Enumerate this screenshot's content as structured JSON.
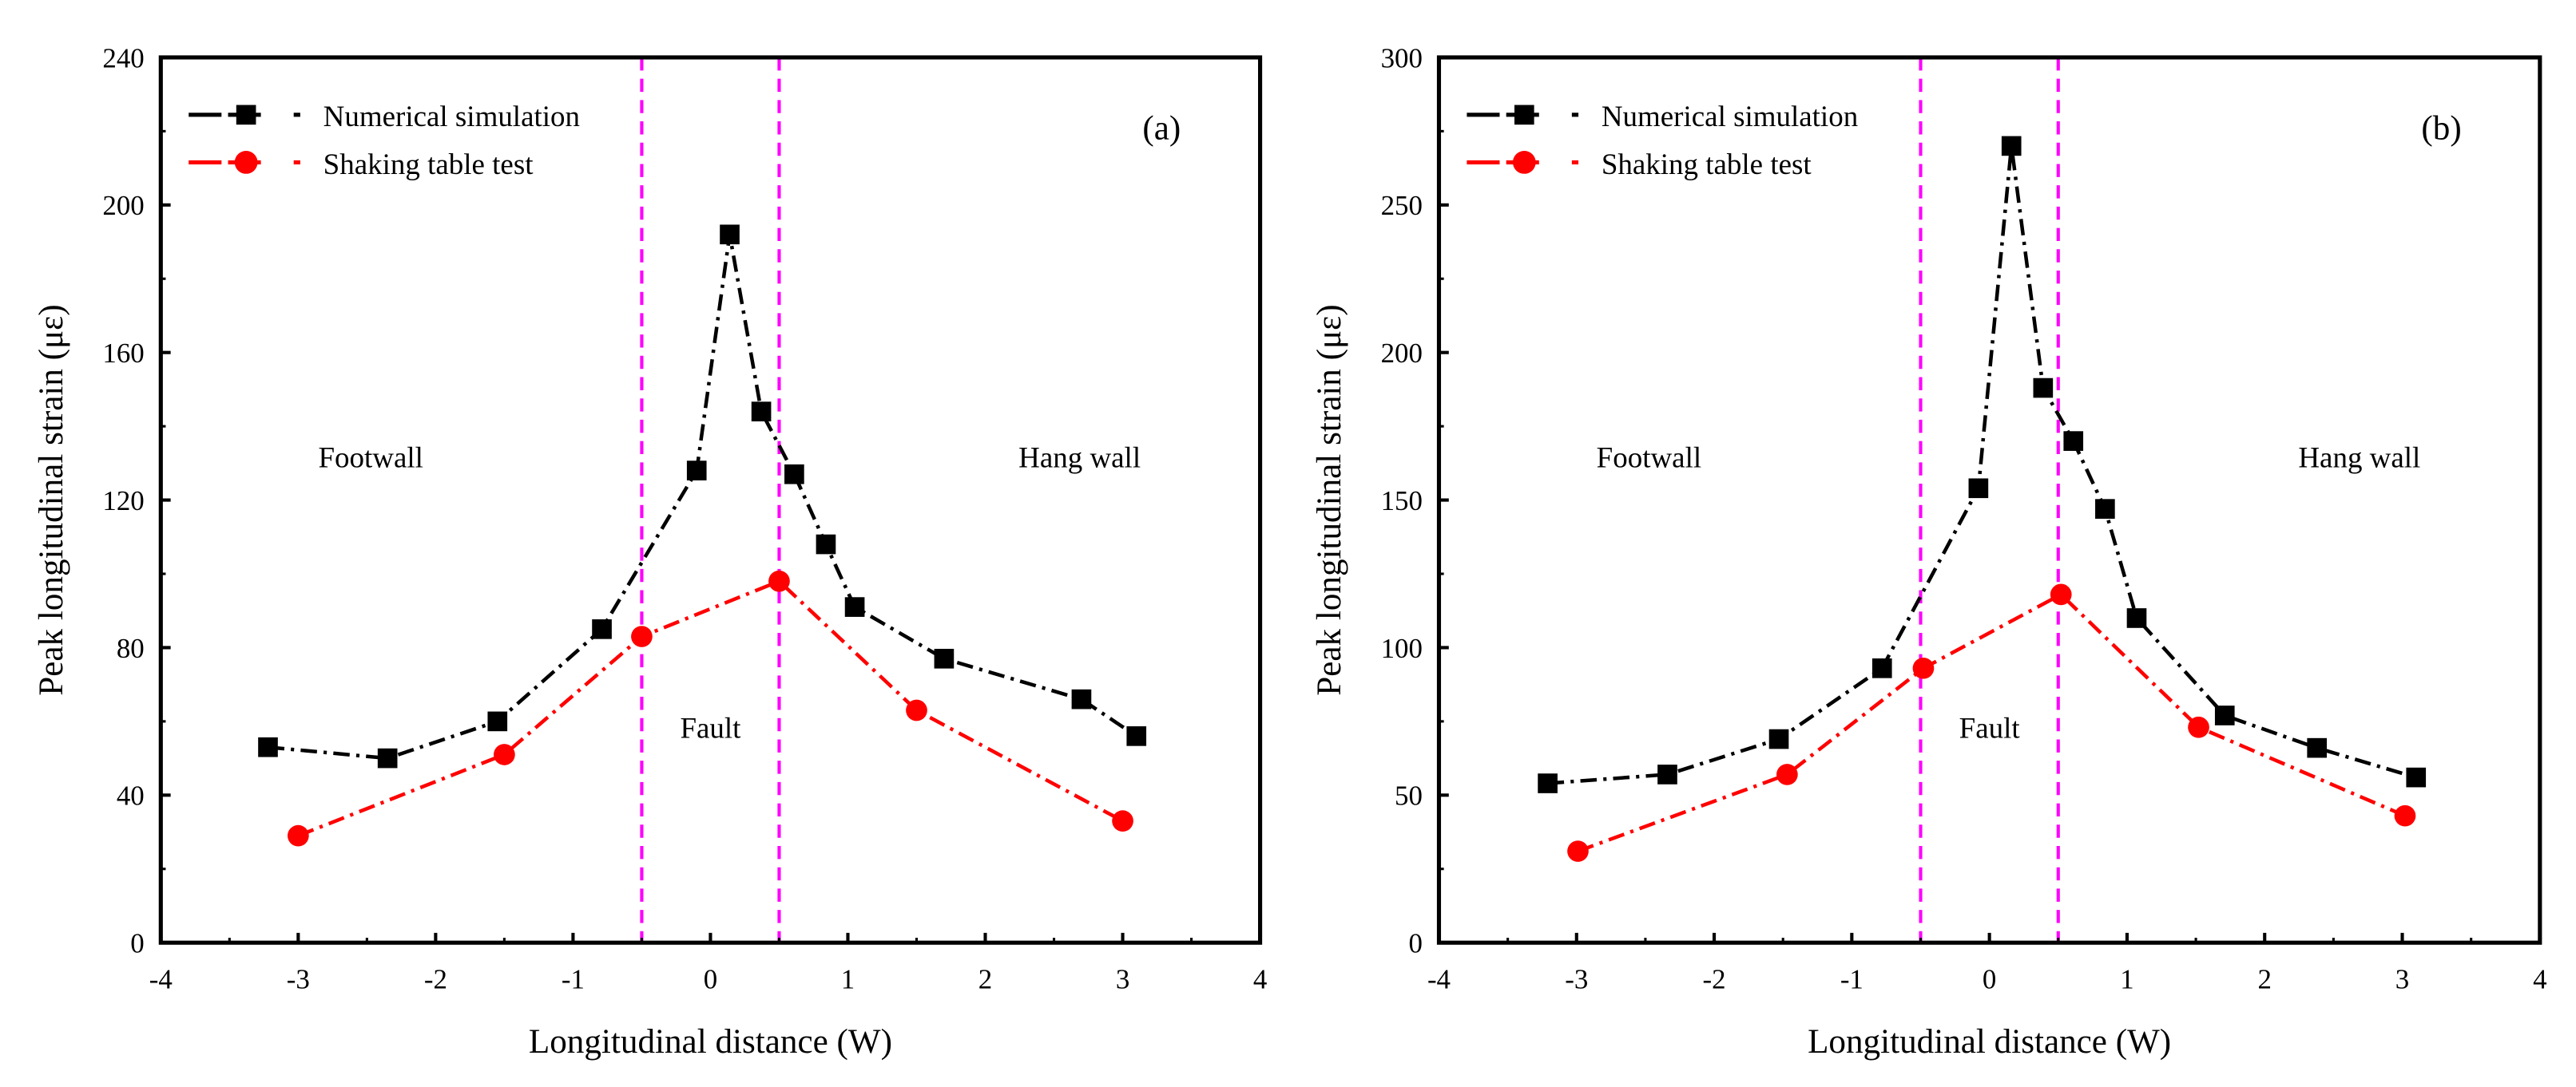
{
  "chart_data": [
    {
      "type": "line",
      "panel_label": "(a)",
      "xlabel": "Longitudinal distance (W)",
      "ylabel": "Peak longitudinal strain (με)",
      "xlim": [
        -4,
        4
      ],
      "ylim": [
        0,
        240
      ],
      "xticks": [
        -4,
        -3,
        -2,
        -1,
        0,
        1,
        2,
        3,
        4
      ],
      "yticks": [
        0,
        40,
        80,
        120,
        160,
        200,
        240
      ],
      "legend_position": "top-left",
      "annotations": [
        "Footwall",
        "Fault",
        "Hang wall"
      ],
      "fault_lines": [
        -0.5,
        0.5
      ],
      "series": [
        {
          "name": "Numerical simulation",
          "color": "#000000",
          "marker": "square",
          "x": [
            -3.22,
            -2.35,
            -1.55,
            -0.79,
            -0.1,
            0.14,
            0.37,
            0.61,
            0.84,
            1.05,
            1.7,
            2.7,
            3.1
          ],
          "y": [
            53,
            50,
            60,
            85,
            128,
            192,
            144,
            127,
            108,
            91,
            77,
            66,
            56
          ]
        },
        {
          "name": "Shaking table test",
          "color": "#ff0000",
          "marker": "circle",
          "x": [
            -3.0,
            -1.5,
            -0.5,
            0.5,
            1.5,
            3.0
          ],
          "y": [
            29,
            51,
            83,
            98,
            63,
            33
          ]
        }
      ]
    },
    {
      "type": "line",
      "panel_label": "(b)",
      "xlabel": "Longitudinal distance (W)",
      "ylabel": "Peak longitudinal strain (με)",
      "xlim": [
        -4,
        4
      ],
      "ylim": [
        0,
        300
      ],
      "xticks": [
        -4,
        -3,
        -2,
        -1,
        0,
        1,
        2,
        3,
        4
      ],
      "yticks": [
        0,
        50,
        100,
        150,
        200,
        250,
        300
      ],
      "legend_position": "top-left",
      "annotations": [
        "Footwall",
        "Fault",
        "Hang wall"
      ],
      "fault_lines": [
        -0.5,
        0.5
      ],
      "series": [
        {
          "name": "Numerical simulation",
          "color": "#000000",
          "marker": "square",
          "x": [
            -3.21,
            -2.34,
            -1.53,
            -0.78,
            -0.08,
            0.16,
            0.39,
            0.61,
            0.84,
            1.07,
            1.71,
            2.38,
            3.1
          ],
          "y": [
            54,
            57,
            69,
            93,
            154,
            270,
            188,
            170,
            147,
            110,
            77,
            66,
            56
          ]
        },
        {
          "name": "Shaking table test",
          "color": "#ff0000",
          "marker": "circle",
          "x": [
            -2.99,
            -1.47,
            -0.48,
            0.52,
            1.52,
            3.02
          ],
          "y": [
            31,
            57,
            93,
            118,
            73,
            43
          ]
        }
      ]
    }
  ]
}
